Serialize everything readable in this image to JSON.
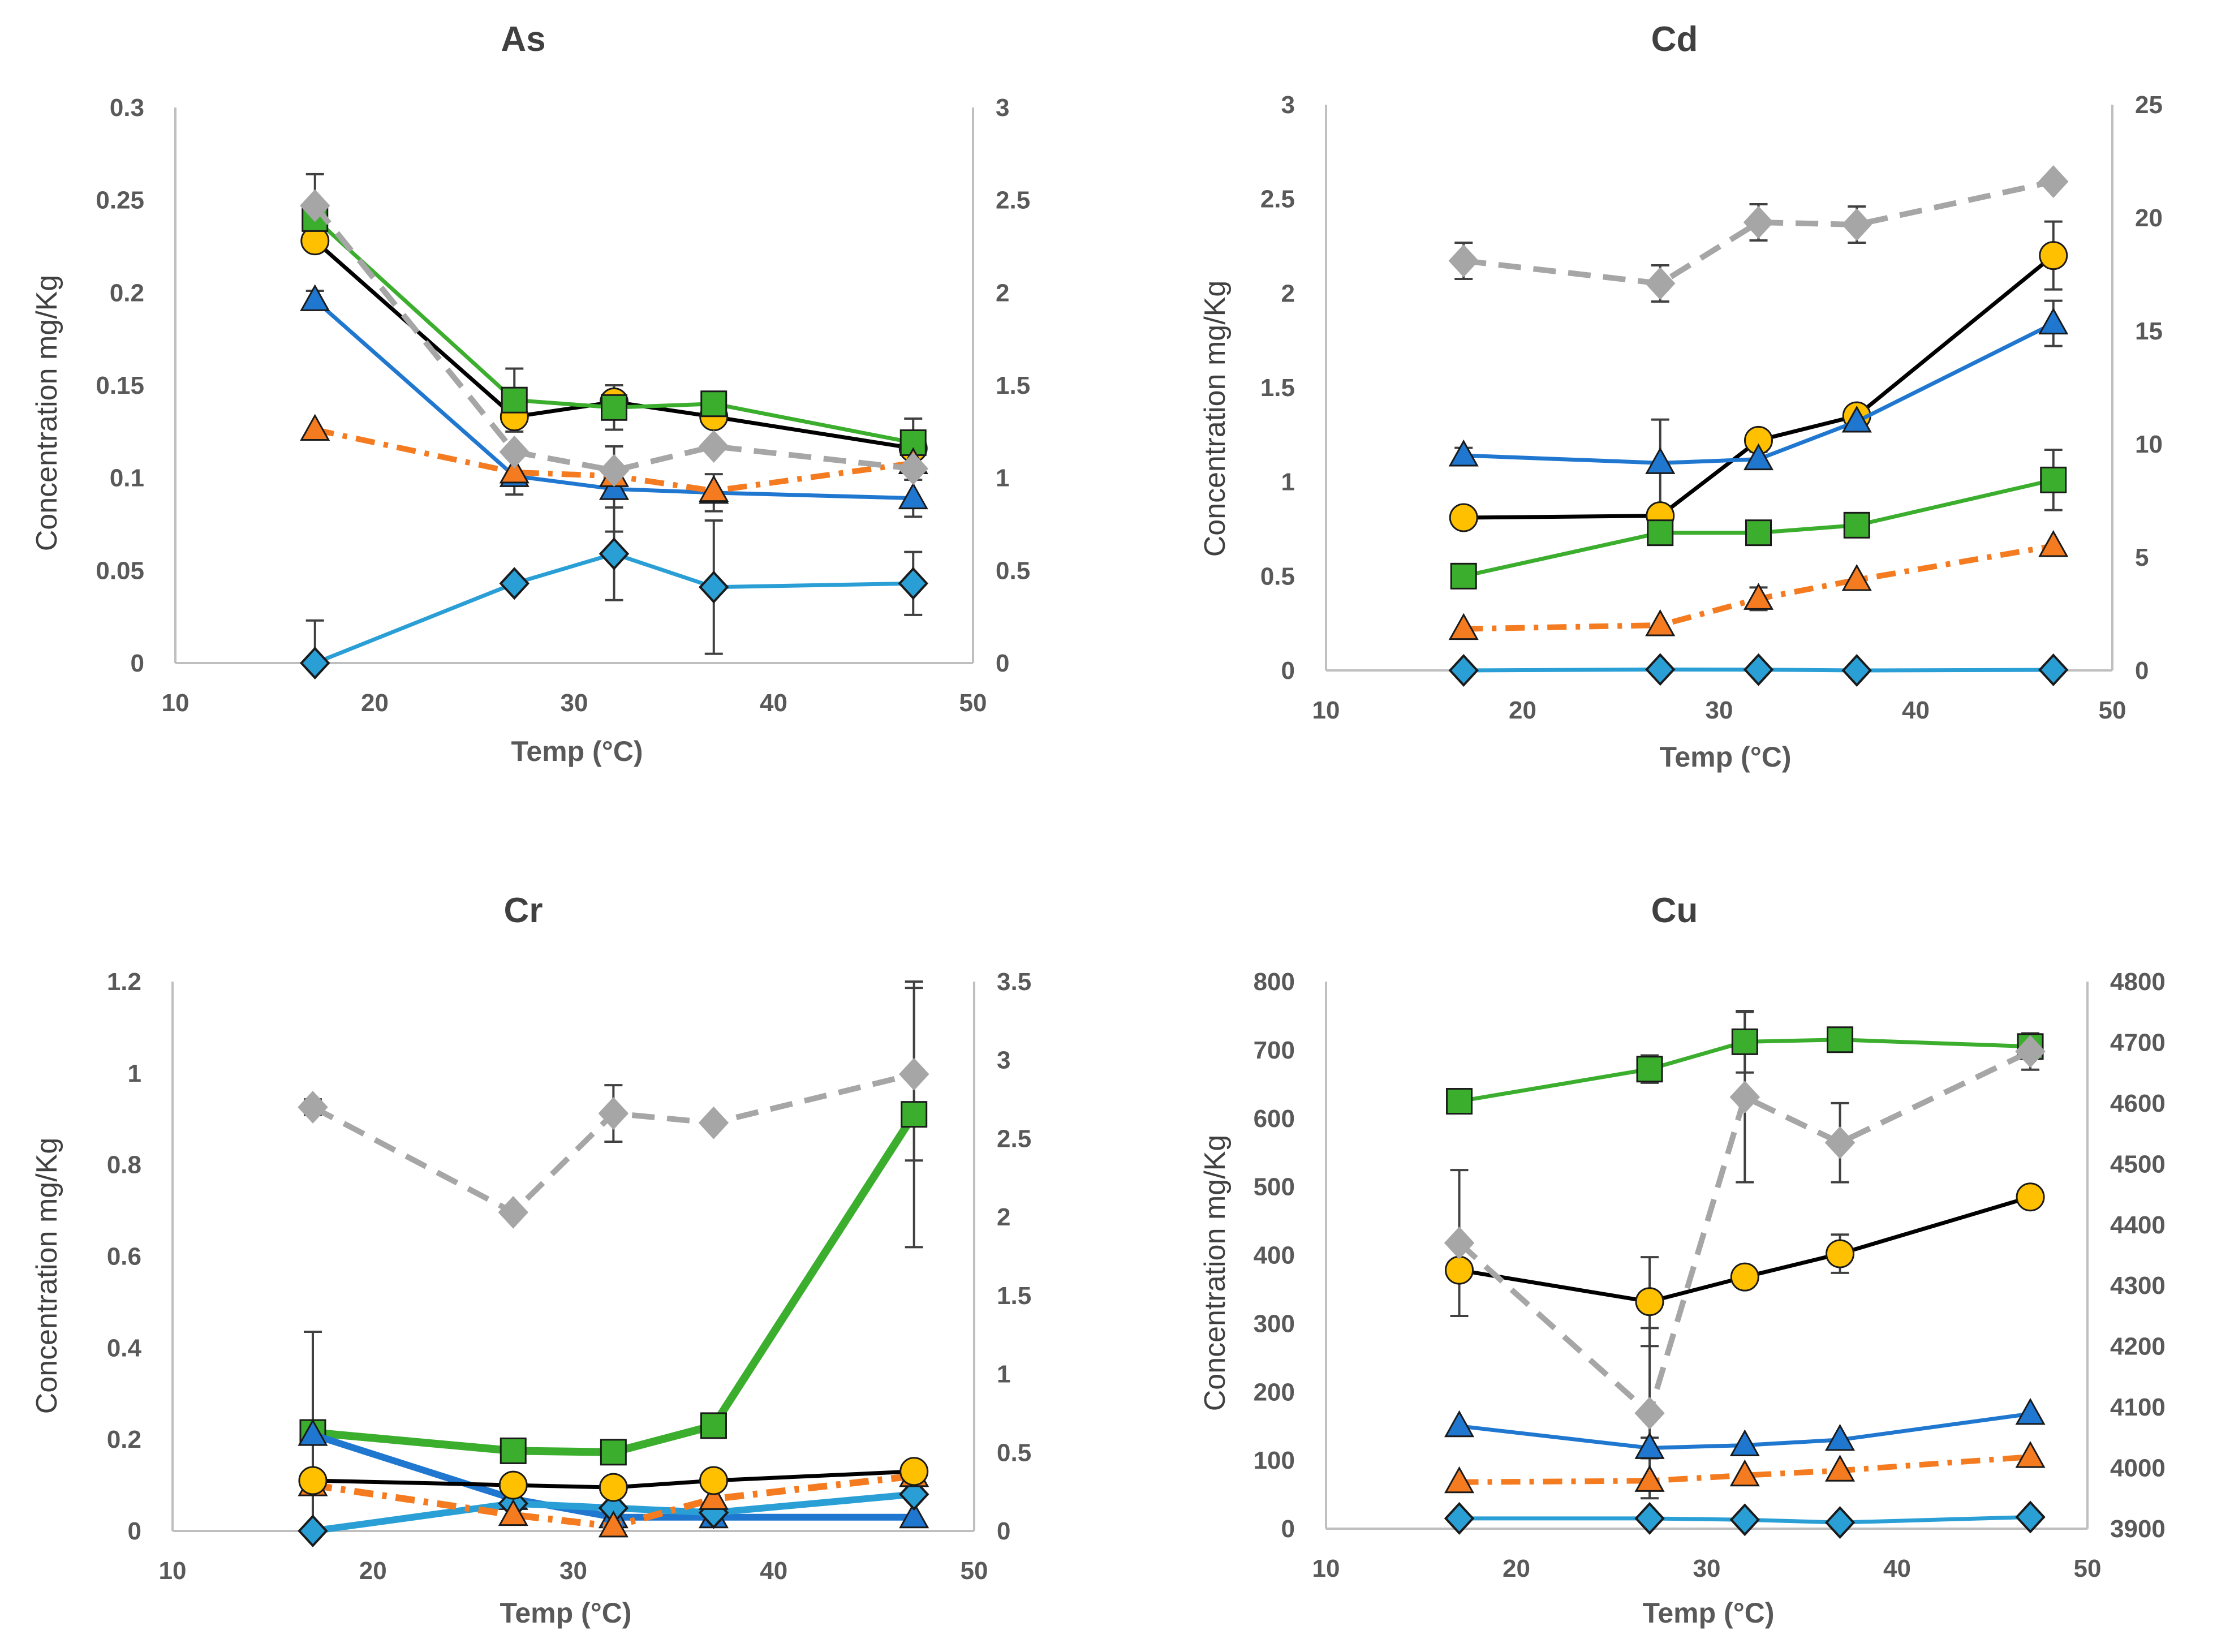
{
  "colors": {
    "axis": "#bfbfbf",
    "tick_text": "#595959",
    "title_text": "#404040",
    "black_series": "#000000",
    "black_marker": "#ffc000",
    "blue_series": "#1f77d0",
    "green_series": "#3cae2e",
    "orange_series": "#f47b20",
    "lightblue_series": "#2a9fd6",
    "gray_series": "#a6a6a6",
    "errorbar": "#404040"
  },
  "chart_data": [
    {
      "type": "line",
      "title": "As",
      "xlabel": "Temp (°C)",
      "ylabel": "Concentration mg/Kg",
      "xlim": [
        10,
        50
      ],
      "ylim": [
        0,
        0.3
      ],
      "y2lim": [
        0,
        3
      ],
      "x_ticks": [
        "10",
        "20",
        "30",
        "40",
        "50"
      ],
      "y_ticks": [
        "0",
        "0.05",
        "0.1",
        "0.15",
        "0.2",
        "0.25",
        "0.3"
      ],
      "y2_ticks": [
        "0",
        "0.5",
        "1",
        "1.5",
        "2",
        "2.5",
        "3"
      ],
      "x": [
        17,
        27,
        32,
        37,
        47
      ],
      "series": [
        {
          "name": "black-circle",
          "axis": "left",
          "color": "#000000",
          "marker": "circle",
          "marker_fill": "#ffc000",
          "dash": "solid",
          "values": [
            0.228,
            0.133,
            0.141,
            0.133,
            0.116
          ],
          "err": [
            0,
            0,
            0,
            0,
            0
          ]
        },
        {
          "name": "green-square",
          "axis": "left",
          "color": "#3cae2e",
          "marker": "square",
          "marker_fill": "#3cae2e",
          "dash": "solid",
          "values": [
            0.24,
            0.142,
            0.138,
            0.14,
            0.119
          ],
          "err": [
            0,
            0.017,
            0.012,
            0,
            0.013
          ]
        },
        {
          "name": "blue-triangle",
          "axis": "left",
          "color": "#1f77d0",
          "marker": "triangle",
          "marker_fill": "#1f77d0",
          "dash": "solid",
          "values": [
            0.196,
            0.101,
            0.094,
            0.092,
            0.089
          ],
          "err": [
            0.005,
            0.01,
            0.023,
            0.01,
            0.01
          ]
        },
        {
          "name": "orange-triangle",
          "axis": "left",
          "color": "#f47b20",
          "marker": "triangle",
          "marker_fill": "#f47b20",
          "dash": "dashdot",
          "values": [
            0.126,
            0.103,
            0.101,
            0.093,
            0.108
          ],
          "err": [
            0,
            0,
            0,
            0,
            0
          ]
        },
        {
          "name": "lightblue-diamond",
          "axis": "left",
          "color": "#2a9fd6",
          "marker": "diamond",
          "marker_fill": "#2a9fd6",
          "dash": "solid",
          "values": [
            0.0,
            0.043,
            0.059,
            0.041,
            0.043
          ],
          "err": [
            0.023,
            0,
            0.025,
            0.036,
            0.017
          ]
        },
        {
          "name": "gray-diamond",
          "axis": "right",
          "color": "#a6a6a6",
          "marker": "diamond",
          "marker_fill": "#a6a6a6",
          "dash": "dash",
          "values": [
            2.47,
            1.14,
            1.04,
            1.17,
            1.05
          ],
          "err": [
            0.17,
            0,
            0,
            0,
            0
          ]
        }
      ]
    },
    {
      "type": "line",
      "title": "Cd",
      "xlabel": "Temp (°C)",
      "ylabel": "Concentration mg/Kg",
      "xlim": [
        10,
        50
      ],
      "ylim": [
        0,
        3
      ],
      "y2lim": [
        0,
        25
      ],
      "x_ticks": [
        "10",
        "20",
        "30",
        "40",
        "50"
      ],
      "y_ticks": [
        "0",
        "0.5",
        "1",
        "1.5",
        "2",
        "2.5",
        "3"
      ],
      "y2_ticks": [
        "0",
        "5",
        "10",
        "15",
        "20",
        "25"
      ],
      "x": [
        17,
        27,
        32,
        37,
        47
      ],
      "series": [
        {
          "name": "black-circle",
          "axis": "left",
          "color": "#000000",
          "marker": "circle",
          "marker_fill": "#ffc000",
          "dash": "solid",
          "values": [
            0.81,
            0.82,
            1.22,
            1.35,
            2.2
          ],
          "err": [
            0,
            0,
            0,
            0,
            0.18
          ]
        },
        {
          "name": "green-square",
          "axis": "left",
          "color": "#3cae2e",
          "marker": "square",
          "marker_fill": "#3cae2e",
          "dash": "solid",
          "values": [
            0.5,
            0.73,
            0.73,
            0.77,
            1.01
          ],
          "err": [
            0,
            0.06,
            0,
            0,
            0.16
          ]
        },
        {
          "name": "blue-triangle",
          "axis": "left",
          "color": "#1f77d0",
          "marker": "triangle",
          "marker_fill": "#1f77d0",
          "dash": "solid",
          "values": [
            1.14,
            1.1,
            1.12,
            1.32,
            1.84
          ],
          "err": [
            0.04,
            0.23,
            0.04,
            0.03,
            0.12
          ]
        },
        {
          "name": "orange-triangle",
          "axis": "left",
          "color": "#f47b20",
          "marker": "triangle",
          "marker_fill": "#f47b20",
          "dash": "dashdot",
          "values": [
            0.22,
            0.24,
            0.38,
            0.48,
            0.66
          ],
          "err": [
            0,
            0,
            0.06,
            0,
            0
          ]
        },
        {
          "name": "lightblue-diamond",
          "axis": "left",
          "color": "#2a9fd6",
          "marker": "diamond",
          "marker_fill": "#2a9fd6",
          "dash": "solid",
          "values": [
            0.0,
            0.005,
            0.004,
            0.0,
            0.003
          ],
          "err": [
            0,
            0,
            0,
            0,
            0
          ]
        },
        {
          "name": "gray-diamond",
          "axis": "right",
          "color": "#a6a6a6",
          "marker": "diamond",
          "marker_fill": "#a6a6a6",
          "dash": "dash",
          "values": [
            18.1,
            17.1,
            19.8,
            19.7,
            21.6
          ],
          "err": [
            0.8,
            0.8,
            0.8,
            0.8,
            0
          ]
        }
      ]
    },
    {
      "type": "line",
      "title": "Cr",
      "xlabel": "Temp (°C)",
      "ylabel": "Concentration mg/Kg",
      "xlim": [
        10,
        50
      ],
      "ylim": [
        0,
        1.2
      ],
      "y2lim": [
        0,
        3.5
      ],
      "x_ticks": [
        "10",
        "20",
        "30",
        "40",
        "50"
      ],
      "y_ticks": [
        "0",
        "0.2",
        "0.4",
        "0.6",
        "0.8",
        "1",
        "1.2"
      ],
      "y2_ticks": [
        "0",
        "0.5",
        "1",
        "1.5",
        "2",
        "2.5",
        "3",
        "3.5"
      ],
      "x": [
        17,
        27,
        32,
        37,
        47
      ],
      "series": [
        {
          "name": "green-square",
          "axis": "left",
          "color": "#3cae2e",
          "marker": "square",
          "marker_fill": "#3cae2e",
          "dash": "solid",
          "width": 14,
          "values": [
            0.215,
            0.175,
            0.172,
            0.23,
            0.91
          ],
          "err": [
            0.22,
            0,
            0,
            0,
            0.29
          ]
        },
        {
          "name": "blue-triangle",
          "axis": "left",
          "color": "#1f77d0",
          "marker": "triangle",
          "marker_fill": "#1f77d0",
          "dash": "solid",
          "width": 12,
          "values": [
            0.21,
            0.07,
            0.03,
            0.03,
            0.03
          ],
          "err": [
            0,
            0,
            0,
            0,
            0
          ]
        },
        {
          "name": "lightblue-diamond",
          "axis": "left",
          "color": "#2a9fd6",
          "marker": "diamond",
          "marker_fill": "#2a9fd6",
          "dash": "solid",
          "width": 12,
          "values": [
            0.0,
            0.06,
            0.05,
            0.04,
            0.08
          ],
          "err": [
            0,
            0,
            0,
            0,
            0
          ]
        },
        {
          "name": "orange-triangle",
          "axis": "left",
          "color": "#f47b20",
          "marker": "triangle",
          "marker_fill": "#f47b20",
          "dash": "dashdot",
          "width": 12,
          "values": [
            0.1,
            0.035,
            0.01,
            0.07,
            0.12
          ],
          "err": [
            0,
            0,
            0,
            0,
            0
          ]
        },
        {
          "name": "black-circle",
          "axis": "left",
          "color": "#000000",
          "marker": "circle",
          "marker_fill": "#ffc000",
          "dash": "solid",
          "values": [
            0.11,
            0.1,
            0.095,
            0.11,
            0.13
          ],
          "err": [
            0,
            0,
            0,
            0,
            0
          ]
        },
        {
          "name": "gray-diamond",
          "axis": "right",
          "color": "#a6a6a6",
          "marker": "diamond",
          "marker_fill": "#a6a6a6",
          "dash": "dash",
          "values": [
            2.7,
            2.03,
            2.66,
            2.6,
            2.91
          ],
          "err": [
            0.05,
            0,
            0.18,
            0,
            0.55
          ]
        }
      ]
    },
    {
      "type": "line",
      "title": "Cu",
      "xlabel": "Temp (°C)",
      "ylabel": "Concentration mg/Kg",
      "xlim": [
        10,
        50
      ],
      "ylim": [
        0,
        800
      ],
      "y2lim": [
        3900,
        4800
      ],
      "x_ticks": [
        "10",
        "20",
        "30",
        "40",
        "50"
      ],
      "y_ticks": [
        "0",
        "100",
        "200",
        "300",
        "400",
        "500",
        "600",
        "700",
        "800"
      ],
      "y2_ticks": [
        "3900",
        "4000",
        "4100",
        "4200",
        "4300",
        "4400",
        "4500",
        "4600",
        "4700",
        "4800"
      ],
      "x": [
        17,
        27,
        32,
        37,
        47
      ],
      "series": [
        {
          "name": "green-square",
          "axis": "left",
          "color": "#3cae2e",
          "marker": "square",
          "marker_fill": "#3cae2e",
          "dash": "solid",
          "values": [
            625,
            672,
            712,
            715,
            705
          ],
          "err": [
            0,
            20,
            45,
            0,
            0
          ]
        },
        {
          "name": "black-circle",
          "axis": "left",
          "color": "#000000",
          "marker": "circle",
          "marker_fill": "#ffc000",
          "dash": "solid",
          "values": [
            378,
            332,
            368,
            402,
            485
          ],
          "err": [
            0,
            65,
            0,
            28,
            0
          ]
        },
        {
          "name": "blue-triangle",
          "axis": "left",
          "color": "#1f77d0",
          "marker": "triangle",
          "marker_fill": "#1f77d0",
          "dash": "solid",
          "values": [
            150,
            118,
            122,
            130,
            168
          ],
          "err": [
            0,
            15,
            0,
            0,
            0
          ]
        },
        {
          "name": "orange-triangle",
          "axis": "left",
          "color": "#f47b20",
          "marker": "triangle",
          "marker_fill": "#f47b20",
          "dash": "dashdot",
          "values": [
            68,
            70,
            78,
            85,
            105
          ],
          "err": [
            0,
            0,
            0,
            0,
            0
          ]
        },
        {
          "name": "lightblue-diamond",
          "axis": "left",
          "color": "#2a9fd6",
          "marker": "diamond",
          "marker_fill": "#2a9fd6",
          "dash": "solid",
          "values": [
            15,
            15,
            13,
            9,
            17
          ],
          "err": [
            0,
            0,
            0,
            0,
            0
          ]
        },
        {
          "name": "gray-diamond",
          "axis": "right",
          "color": "#a6a6a6",
          "marker": "diamond",
          "marker_fill": "#a6a6a6",
          "dash": "dash",
          "values": [
            4370,
            4090,
            4610,
            4535,
            4685
          ],
          "err": [
            120,
            140,
            140,
            65,
            30
          ]
        }
      ]
    }
  ]
}
